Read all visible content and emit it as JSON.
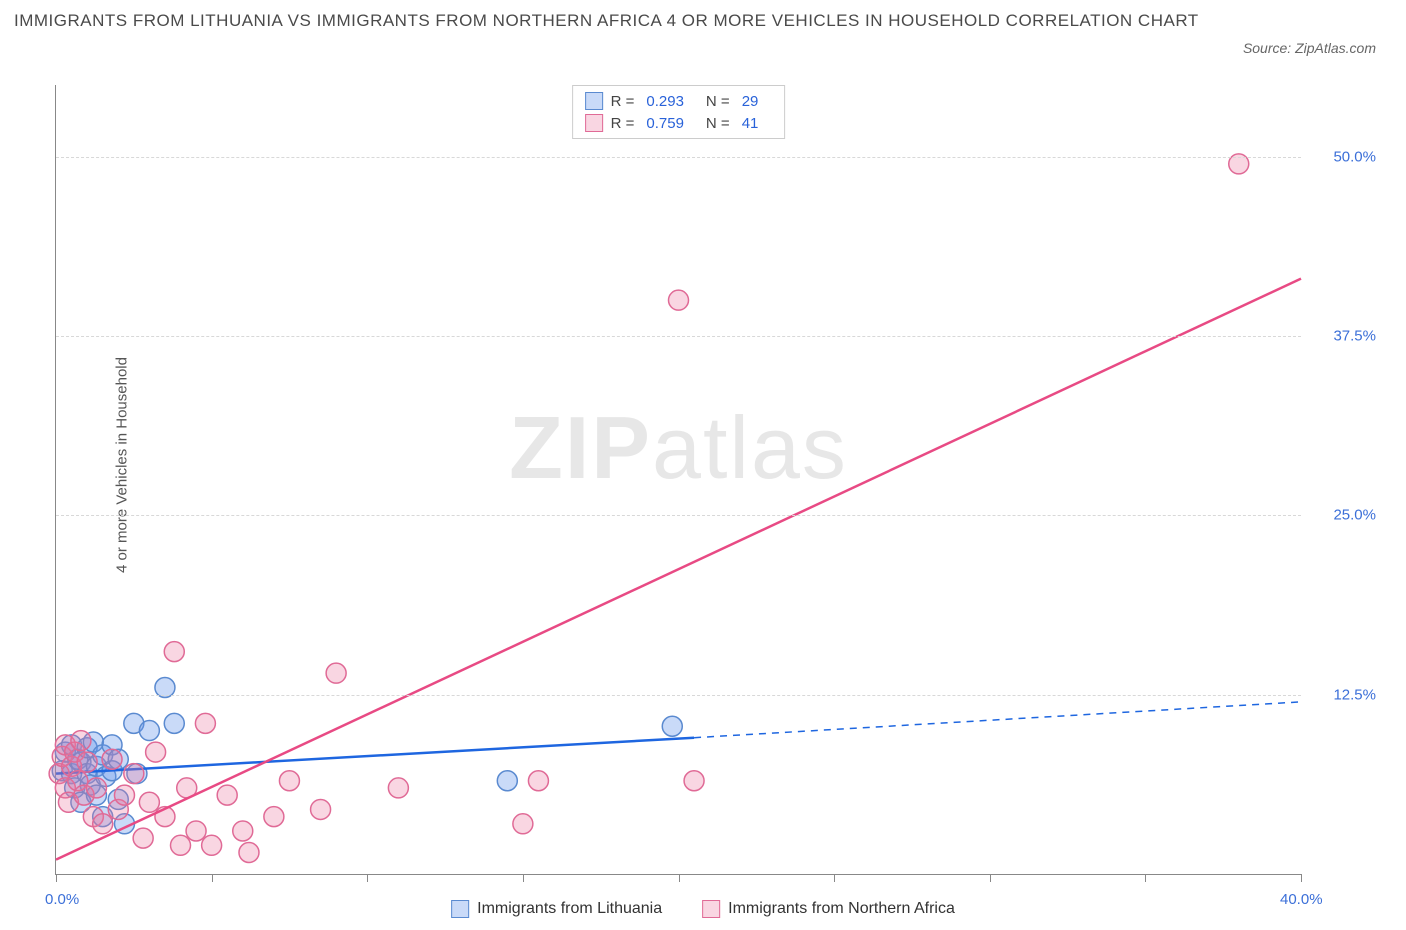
{
  "title": "IMMIGRANTS FROM LITHUANIA VS IMMIGRANTS FROM NORTHERN AFRICA 4 OR MORE VEHICLES IN HOUSEHOLD CORRELATION CHART",
  "source_label": "Source: ZipAtlas.com",
  "ylabel": "4 or more Vehicles in Household",
  "watermark_bold": "ZIP",
  "watermark_light": "atlas",
  "chart": {
    "type": "scatter",
    "background_color": "#ffffff",
    "grid_color": "#d8d8d8",
    "axis_color": "#888888",
    "xlim": [
      0,
      40
    ],
    "ylim": [
      0,
      55
    ],
    "xticks": [
      0,
      5,
      10,
      15,
      20,
      25,
      30,
      35,
      40
    ],
    "xtick_labels": {
      "0": "0.0%",
      "40": "40.0%"
    },
    "ygrid": [
      12.5,
      25.0,
      37.5,
      50.0
    ],
    "ytick_labels": [
      "12.5%",
      "25.0%",
      "37.5%",
      "50.0%"
    ],
    "marker_radius": 10,
    "marker_stroke_width": 1.5,
    "line_width": 2.5,
    "label_color": "#3b6fd8",
    "label_fontsize": 15
  },
  "series": [
    {
      "name": "Immigrants from Lithuania",
      "color_fill": "rgba(100,150,235,0.35)",
      "color_stroke": "#5a8ad0",
      "line_color": "#1e66e0",
      "R": "0.293",
      "N": "29",
      "trend": {
        "x1": 0,
        "y1": 7.0,
        "x2": 20.5,
        "y2": 9.5,
        "x2_ext": 40,
        "y2_ext": 12.0
      },
      "points": [
        [
          0.2,
          7.2
        ],
        [
          0.3,
          8.5
        ],
        [
          0.5,
          7.0
        ],
        [
          0.5,
          9.0
        ],
        [
          0.6,
          6.0
        ],
        [
          0.7,
          8.0
        ],
        [
          0.8,
          7.8
        ],
        [
          0.8,
          5.0
        ],
        [
          1.0,
          8.8
        ],
        [
          1.0,
          7.0
        ],
        [
          1.1,
          6.2
        ],
        [
          1.2,
          9.2
        ],
        [
          1.3,
          5.5
        ],
        [
          1.3,
          7.5
        ],
        [
          1.5,
          8.3
        ],
        [
          1.5,
          4.0
        ],
        [
          1.6,
          6.8
        ],
        [
          1.8,
          7.2
        ],
        [
          1.8,
          9.0
        ],
        [
          2.0,
          5.2
        ],
        [
          2.0,
          8.0
        ],
        [
          2.2,
          3.5
        ],
        [
          2.5,
          10.5
        ],
        [
          2.6,
          7.0
        ],
        [
          3.0,
          10.0
        ],
        [
          3.5,
          13.0
        ],
        [
          3.8,
          10.5
        ],
        [
          14.5,
          6.5
        ],
        [
          19.8,
          10.3
        ]
      ]
    },
    {
      "name": "Immigrants from Northern Africa",
      "color_fill": "rgba(235,120,160,0.30)",
      "color_stroke": "#e06a96",
      "line_color": "#e84a84",
      "R": "0.759",
      "N": "41",
      "trend": {
        "x1": 0,
        "y1": 1.0,
        "x2": 40,
        "y2": 41.5
      },
      "points": [
        [
          0.1,
          7.0
        ],
        [
          0.2,
          8.2
        ],
        [
          0.3,
          6.0
        ],
        [
          0.3,
          9.0
        ],
        [
          0.4,
          5.0
        ],
        [
          0.5,
          7.5
        ],
        [
          0.6,
          8.5
        ],
        [
          0.7,
          6.5
        ],
        [
          0.8,
          9.3
        ],
        [
          0.9,
          5.5
        ],
        [
          1.0,
          7.8
        ],
        [
          1.2,
          4.0
        ],
        [
          1.3,
          6.0
        ],
        [
          1.5,
          3.5
        ],
        [
          1.8,
          8.0
        ],
        [
          2.0,
          4.5
        ],
        [
          2.2,
          5.5
        ],
        [
          2.5,
          7.0
        ],
        [
          2.8,
          2.5
        ],
        [
          3.0,
          5.0
        ],
        [
          3.2,
          8.5
        ],
        [
          3.5,
          4.0
        ],
        [
          3.8,
          15.5
        ],
        [
          4.0,
          2.0
        ],
        [
          4.2,
          6.0
        ],
        [
          4.5,
          3.0
        ],
        [
          4.8,
          10.5
        ],
        [
          5.0,
          2.0
        ],
        [
          5.5,
          5.5
        ],
        [
          6.0,
          3.0
        ],
        [
          6.2,
          1.5
        ],
        [
          7.0,
          4.0
        ],
        [
          7.5,
          6.5
        ],
        [
          8.5,
          4.5
        ],
        [
          9.0,
          14.0
        ],
        [
          11.0,
          6.0
        ],
        [
          15.0,
          3.5
        ],
        [
          15.5,
          6.5
        ],
        [
          20.0,
          40.0
        ],
        [
          20.5,
          6.5
        ],
        [
          38.0,
          49.5
        ]
      ]
    }
  ],
  "legend_bottom": [
    "Immigrants from Lithuania",
    "Immigrants from Northern Africa"
  ]
}
